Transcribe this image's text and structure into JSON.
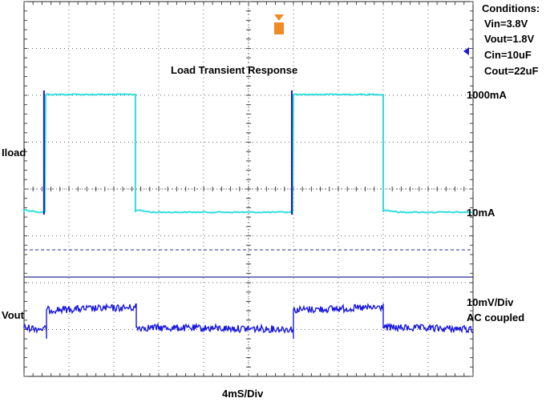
{
  "chart_data": {
    "type": "line",
    "title": "Load Transient Response",
    "xlabel": "4mS/Div",
    "conditions": {
      "heading": "Conditions:",
      "lines": [
        "Vin=3.8V",
        "Vout=1.8V",
        "Cin=10uF",
        "Cout=22uF"
      ]
    },
    "grid": true,
    "divisions": {
      "x": 10,
      "y": 8
    },
    "time_per_div_ms": 4,
    "series": [
      {
        "name": "Iload",
        "color": "#33dddd",
        "high_label": "1000mA",
        "low_label": "10mA",
        "points": [
          [
            0,
            10
          ],
          [
            0.48,
            10
          ],
          [
            0.48,
            1000
          ],
          [
            2.48,
            1000
          ],
          [
            2.48,
            10
          ],
          [
            6.0,
            10
          ],
          [
            6.0,
            1000
          ],
          [
            8.0,
            1000
          ],
          [
            8.0,
            10
          ],
          [
            10,
            10
          ]
        ]
      },
      {
        "name": "Vout",
        "color": "#1a1adf",
        "scale_label": "10mV/Div",
        "coupling_label": "AC coupled",
        "points": [
          [
            0,
            -5
          ],
          [
            0.5,
            -5
          ],
          [
            0.5,
            5
          ],
          [
            2.5,
            5
          ],
          [
            2.5,
            -5
          ],
          [
            6.0,
            -5
          ],
          [
            6.0,
            5
          ],
          [
            8.0,
            5
          ],
          [
            8.0,
            -5
          ],
          [
            10,
            -5
          ]
        ]
      }
    ]
  }
}
